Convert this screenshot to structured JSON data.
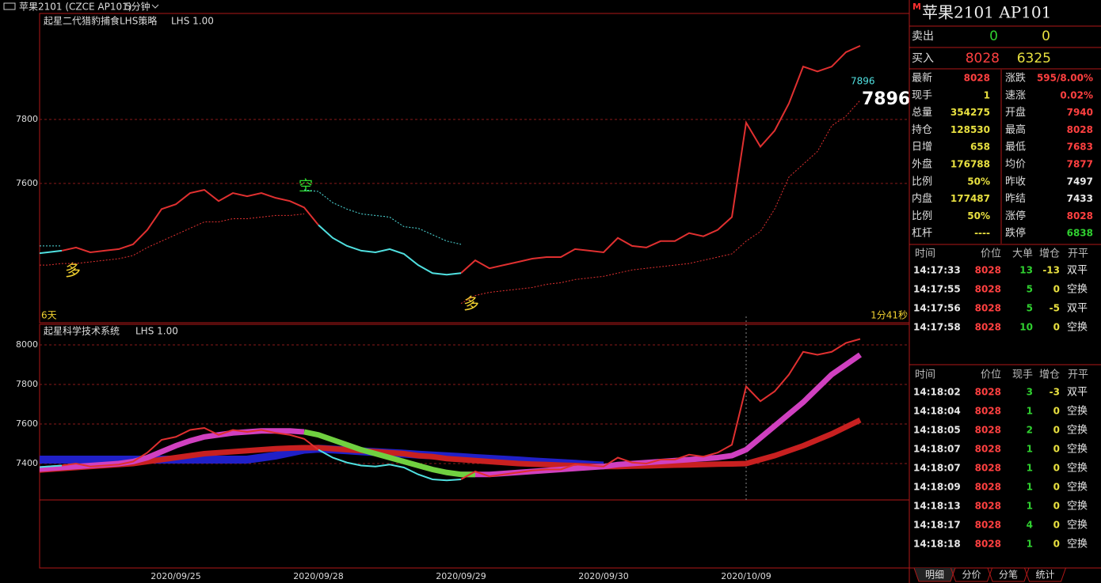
{
  "header": {
    "title": "苹果2101 (CZCE AP101)",
    "period": "5分钟"
  },
  "chart_data": [
    {
      "type": "line",
      "title": "起星二代猎豹捕食LHS策略",
      "subtitle": "LHS 1.00",
      "ylim": [
        7165,
        8131
      ],
      "yticks": [
        7600,
        7800
      ],
      "grid": true,
      "annotations": [
        "多",
        "空",
        "多"
      ],
      "duration": "6天",
      "countdown": "1分41秒",
      "last_value": 7896,
      "series": [
        {
          "color": "#e03030",
          "style": "line",
          "values": [
            null,
            null,
            7390,
            7400,
            7385,
            7390,
            7395,
            7410,
            7455,
            7520,
            7535,
            7570,
            7580,
            7545,
            7570,
            7560,
            7570,
            7555,
            7545,
            7525,
            7470,
            null,
            null,
            null,
            null,
            null,
            null,
            null,
            null,
            null,
            7320,
            7360,
            7335,
            7345,
            7355,
            7365,
            7370,
            7370,
            7395,
            7390,
            7385,
            7430,
            7405,
            7400,
            7420,
            7420,
            7445,
            7435,
            7455,
            7495,
            7790,
            7715,
            7765,
            7850,
            7965,
            7950,
            7965,
            8010,
            8030
          ]
        },
        {
          "color": "#50e0e0",
          "style": "line",
          "values": [
            7380,
            7385,
            7390,
            null,
            null,
            null,
            null,
            null,
            null,
            null,
            null,
            null,
            null,
            null,
            null,
            null,
            null,
            null,
            null,
            null,
            7470,
            7430,
            7405,
            7390,
            7385,
            7395,
            7380,
            7345,
            7320,
            7315,
            7320,
            null,
            null,
            null,
            null,
            null,
            null,
            null,
            null,
            null,
            null,
            null,
            null,
            null,
            null,
            null,
            null,
            null,
            null,
            null,
            null,
            null,
            null,
            null,
            null,
            null,
            null,
            null,
            null
          ]
        },
        {
          "color": "#e03030",
          "style": "dashed",
          "values": [
            7345,
            7345,
            7350,
            7350,
            7355,
            7360,
            7365,
            7375,
            7400,
            7420,
            7440,
            7460,
            7480,
            7480,
            7490,
            7490,
            7495,
            7500,
            7500,
            7505,
            null,
            null,
            null,
            null,
            null,
            null,
            null,
            null,
            null,
            null,
            7225,
            7250,
            7260,
            7265,
            7270,
            7275,
            7285,
            7290,
            7300,
            7305,
            7310,
            7320,
            7330,
            7335,
            7340,
            7345,
            7350,
            7360,
            7370,
            7380,
            7420,
            7450,
            7520,
            7620,
            7660,
            7700,
            7780,
            7810,
            7860
          ]
        },
        {
          "color": "#50e0e0",
          "style": "dashed",
          "values": [
            7405,
            7405,
            7405,
            null,
            null,
            null,
            null,
            null,
            null,
            null,
            null,
            null,
            null,
            null,
            null,
            null,
            null,
            null,
            null,
            7580,
            7575,
            7540,
            7520,
            7505,
            7500,
            7495,
            7465,
            7460,
            7440,
            7420,
            7410,
            null,
            null,
            null,
            null,
            null,
            null,
            null,
            null,
            null,
            null,
            null,
            null,
            null,
            null,
            null,
            null,
            null,
            null,
            null,
            null,
            null,
            null,
            null,
            null,
            null,
            null,
            null,
            null
          ]
        }
      ]
    },
    {
      "type": "line",
      "title": "起星科学技术系统",
      "subtitle": "LHS 1.00",
      "ylim": [
        7216,
        8104
      ],
      "yticks": [
        7400,
        7600,
        7800,
        8000
      ],
      "grid": true,
      "categories": [
        null,
        null,
        null,
        null,
        null,
        null,
        null,
        null,
        null,
        null,
        "2020/09/25",
        null,
        null,
        null,
        null,
        null,
        null,
        null,
        null,
        null,
        "2020/09/28",
        null,
        null,
        null,
        null,
        null,
        null,
        null,
        null,
        null,
        "2020/09/29",
        null,
        null,
        null,
        null,
        null,
        null,
        null,
        null,
        null,
        "2020/09/30",
        null,
        null,
        null,
        null,
        null,
        null,
        null,
        null,
        null,
        "2020/10/09",
        null,
        null,
        null,
        null,
        null,
        null,
        null,
        null
      ],
      "series": [
        {
          "color": "#2020c8",
          "style": "band",
          "values": [
            7420,
            7420,
            7420,
            7420,
            7420,
            7420,
            7420,
            7420,
            7420,
            7420,
            7420,
            7420,
            7420,
            7420,
            7420,
            7420,
            7430,
            7440,
            7455,
            7470,
            7475,
            7471,
            7467,
            7462,
            7458,
            7454,
            7450,
            7445,
            7441,
            7437,
            7433,
            7428,
            7424,
            7420,
            7416,
            7411,
            7407,
            7403,
            7399,
            7394,
            7390,
            null,
            null,
            null,
            null,
            null,
            null,
            null,
            null,
            null,
            null,
            null,
            null,
            null,
            null,
            null,
            null,
            null,
            null
          ]
        },
        {
          "color": "#c82020",
          "style": "band",
          "values": [
            7365,
            7370,
            7375,
            7380,
            7385,
            7390,
            7395,
            7400,
            7410,
            7420,
            7430,
            7440,
            7450,
            7455,
            7460,
            7465,
            7470,
            7475,
            7478,
            7480,
            7480,
            7475,
            7470,
            7465,
            7460,
            7455,
            7450,
            7440,
            7435,
            7425,
            7420,
            7415,
            7410,
            7405,
            7400,
            7397,
            7395,
            7392,
            7390,
            7387,
            7385,
            7385,
            7387,
            7388,
            7390,
            7392,
            7393,
            7395,
            7397,
            7398,
            7400,
            7420,
            7440,
            7465,
            7490,
            7520,
            7550,
            7585,
            7620
          ]
        },
        {
          "color": "#d040c0",
          "style": "band",
          "values": [
            7370,
            7375,
            7380,
            7385,
            7390,
            7395,
            7400,
            7410,
            7430,
            7460,
            7490,
            7515,
            7535,
            7545,
            7555,
            7560,
            7565,
            7565,
            7565,
            7560,
            null,
            null,
            null,
            null,
            null,
            null,
            null,
            null,
            null,
            null,
            7345,
            7345,
            7345,
            7350,
            7355,
            7360,
            7365,
            7370,
            7375,
            7380,
            7385,
            7395,
            7400,
            7405,
            7410,
            7415,
            7420,
            7425,
            7430,
            7440,
            7470,
            7530,
            7590,
            7650,
            7710,
            7780,
            7850,
            7900,
            7950
          ]
        },
        {
          "color": "#70d040",
          "style": "band",
          "values": [
            null,
            null,
            null,
            null,
            null,
            null,
            null,
            null,
            null,
            null,
            null,
            null,
            null,
            null,
            null,
            null,
            null,
            null,
            null,
            7560,
            7545,
            7520,
            7495,
            7470,
            7450,
            7430,
            7410,
            7390,
            7370,
            7355,
            7345,
            7345,
            null,
            null,
            null,
            null,
            null,
            null,
            null,
            null,
            null,
            null,
            null,
            null,
            null,
            null,
            null,
            null,
            null,
            null,
            null,
            null,
            null,
            null,
            null,
            null,
            null,
            null,
            null
          ]
        }
      ]
    }
  ],
  "quote": {
    "title": "苹果2101  AP101",
    "badge": "M",
    "ask": {
      "label": "卖出",
      "price": "0",
      "volume": "0"
    },
    "bid": {
      "label": "买入",
      "price": "8028",
      "volume": "6325"
    },
    "rows": [
      [
        "最新",
        "8028",
        "涨跌",
        "595/8.00%"
      ],
      [
        "现手",
        "1",
        "速涨",
        "0.02%"
      ],
      [
        "总量",
        "354275",
        "开盘",
        "7940"
      ],
      [
        "持仓",
        "128530",
        "最高",
        "8028"
      ],
      [
        "日增",
        "658",
        "最低",
        "7683"
      ],
      [
        "外盘",
        "176788",
        "均价",
        "7877"
      ],
      [
        "比例",
        "50%",
        "昨收",
        "7497"
      ],
      [
        "内盘",
        "177487",
        "昨结",
        "7433"
      ],
      [
        "比例",
        "50%",
        "涨停",
        "8028"
      ],
      [
        "杠杆",
        "----",
        "跌停",
        "6838"
      ]
    ],
    "value_colors": [
      [
        "#ff4040",
        "#ff4040"
      ],
      [
        "#e8e040",
        "#ff4040"
      ],
      [
        "#e8e040",
        "#ff4040"
      ],
      [
        "#e8e040",
        "#ff4040"
      ],
      [
        "#e8e040",
        "#ff4040"
      ],
      [
        "#e8e040",
        "#ff4040"
      ],
      [
        "#e8e040",
        "#e8e8e8"
      ],
      [
        "#e8e040",
        "#e8e8e8"
      ],
      [
        "#e8e040",
        "#ff4040"
      ],
      [
        "#e8e040",
        "#30d030"
      ]
    ]
  },
  "trades": [
    {
      "header": [
        "时间",
        "价位",
        "大单",
        "增仓",
        "开平"
      ],
      "colors": [
        "#e8e8e8",
        "#ff4040",
        "#30d030",
        "#e8e040",
        "#e8e8e8"
      ],
      "rows": [
        [
          "14:17:33",
          "8028",
          "13",
          "-13",
          "双平"
        ],
        [
          "14:17:55",
          "8028",
          "5",
          "0",
          "空换"
        ],
        [
          "14:17:56",
          "8028",
          "5",
          "-5",
          "双平"
        ],
        [
          "14:17:58",
          "8028",
          "10",
          "0",
          "空换"
        ]
      ]
    },
    {
      "header": [
        "时间",
        "价位",
        "现手",
        "增仓",
        "开平"
      ],
      "colors": [
        "#e8e8e8",
        "#ff4040",
        "#30d030",
        "#e8e040",
        "#e8e8e8"
      ],
      "rows": [
        [
          "14:18:02",
          "8028",
          "3",
          "-3",
          "双平"
        ],
        [
          "14:18:04",
          "8028",
          "1",
          "0",
          "空换"
        ],
        [
          "14:18:05",
          "8028",
          "2",
          "0",
          "空换"
        ],
        [
          "14:18:07",
          "8028",
          "1",
          "0",
          "空换"
        ],
        [
          "14:18:07",
          "8028",
          "1",
          "0",
          "空换"
        ],
        [
          "14:18:09",
          "8028",
          "1",
          "0",
          "空换"
        ],
        [
          "14:18:13",
          "8028",
          "1",
          "0",
          "空换"
        ],
        [
          "14:18:17",
          "8028",
          "4",
          "0",
          "空换"
        ],
        [
          "14:18:18",
          "8028",
          "1",
          "0",
          "空换"
        ]
      ]
    }
  ],
  "tabs": [
    "明细",
    "分价",
    "分笔",
    "统计"
  ]
}
